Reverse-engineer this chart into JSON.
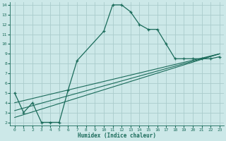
{
  "xlabel": "Humidex (Indice chaleur)",
  "bg_color": "#cce8e8",
  "grid_color": "#aacccc",
  "line_color": "#1a6b5a",
  "xlim": [
    -0.5,
    23.5
  ],
  "ylim": [
    1.7,
    14.3
  ],
  "xticks": [
    0,
    1,
    2,
    3,
    4,
    5,
    6,
    7,
    8,
    9,
    10,
    11,
    12,
    13,
    14,
    15,
    16,
    17,
    18,
    19,
    20,
    21,
    22,
    23
  ],
  "yticks": [
    2,
    3,
    4,
    5,
    6,
    7,
    8,
    9,
    10,
    11,
    12,
    13,
    14
  ],
  "curve1_x": [
    0,
    1,
    2,
    3,
    4,
    5,
    6,
    7,
    10,
    11,
    12,
    13,
    14,
    15,
    16,
    17,
    18,
    19,
    20,
    21,
    22,
    23
  ],
  "curve1_y": [
    5.0,
    3.0,
    4.0,
    2.0,
    2.0,
    2.0,
    5.3,
    8.3,
    11.3,
    14.0,
    14.0,
    13.3,
    12.0,
    11.5,
    11.5,
    10.0,
    8.5,
    8.5,
    8.5,
    8.5,
    8.5,
    8.7
  ],
  "curve2_x": [
    0,
    23
  ],
  "curve2_y": [
    2.5,
    9.0
  ],
  "curve3_x": [
    0,
    23
  ],
  "curve3_y": [
    4.0,
    9.0
  ],
  "curve4_x": [
    0,
    23
  ],
  "curve4_y": [
    3.2,
    9.0
  ]
}
